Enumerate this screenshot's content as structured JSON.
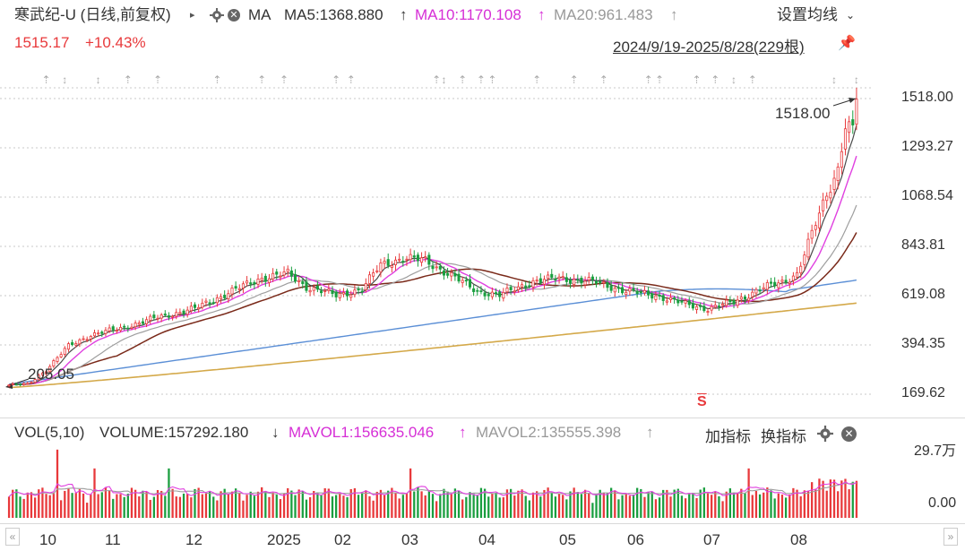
{
  "header": {
    "title": "寒武纪-U (日线,前复权)",
    "ma_label": "MA",
    "ma5": "MA5:1368.880",
    "ma10": "MA10:1170.108",
    "ma20": "MA20:961.483",
    "settings": "设置均线",
    "price": "1515.17",
    "change": "+10.43%",
    "range": "2024/9/19-2025/8/28(229根)"
  },
  "volume_header": {
    "vol": "VOL(5,10)",
    "volume": "VOLUME:157292.180",
    "mavol1": "MAVOL1:156635.046",
    "mavol2": "MAVOL2:135555.398",
    "add_indicator": "加指标",
    "swap_indicator": "换指标"
  },
  "colors": {
    "up": "#e8393b",
    "down": "#1a9e3f",
    "ma5": "#4a4a4a",
    "ma10": "#e040e0",
    "ma20": "#9e9e9e",
    "ma60": "#7a2a1a",
    "ma120": "#5b8fd6",
    "ma250": "#d4a94a",
    "mavol1": "#e040e0",
    "mavol2": "#9e9e9e"
  },
  "chart_data": {
    "type": "candlestick",
    "price_axis": {
      "ticks": [
        "1518.00",
        "1293.27",
        "1068.54",
        "843.81",
        "619.08",
        "394.35",
        "169.62"
      ],
      "ylim": [
        169.62,
        1518.0
      ]
    },
    "volume_axis": {
      "ticks": [
        "29.7万",
        "0.00"
      ],
      "ylim": [
        0,
        297000
      ]
    },
    "x_labels": [
      "10",
      "11",
      "12",
      "2025",
      "02",
      "03",
      "04",
      "05",
      "06",
      "07",
      "08"
    ],
    "annotations": {
      "high": "1518.00",
      "low": "205.05",
      "marker": "S"
    },
    "bars_count": 229,
    "key_points": [
      {
        "i": 0,
        "close": 212
      },
      {
        "i": 5,
        "close": 215
      },
      {
        "i": 10,
        "close": 280
      },
      {
        "i": 16,
        "close": 390
      },
      {
        "i": 22,
        "close": 440
      },
      {
        "i": 30,
        "close": 470
      },
      {
        "i": 40,
        "close": 520
      },
      {
        "i": 50,
        "close": 560
      },
      {
        "i": 60,
        "close": 640
      },
      {
        "i": 68,
        "close": 700
      },
      {
        "i": 75,
        "close": 720
      },
      {
        "i": 80,
        "close": 660
      },
      {
        "i": 88,
        "close": 620
      },
      {
        "i": 95,
        "close": 650
      },
      {
        "i": 100,
        "close": 760
      },
      {
        "i": 106,
        "close": 790
      },
      {
        "i": 112,
        "close": 780
      },
      {
        "i": 118,
        "close": 720
      },
      {
        "i": 126,
        "close": 640
      },
      {
        "i": 132,
        "close": 620
      },
      {
        "i": 140,
        "close": 680
      },
      {
        "i": 148,
        "close": 700
      },
      {
        "i": 158,
        "close": 680
      },
      {
        "i": 166,
        "close": 640
      },
      {
        "i": 174,
        "close": 620
      },
      {
        "i": 182,
        "close": 580
      },
      {
        "i": 188,
        "close": 560
      },
      {
        "i": 195,
        "close": 590
      },
      {
        "i": 202,
        "close": 650
      },
      {
        "i": 208,
        "close": 680
      },
      {
        "i": 212,
        "close": 720
      },
      {
        "i": 216,
        "close": 900
      },
      {
        "i": 220,
        "close": 1080
      },
      {
        "i": 223,
        "close": 1200
      },
      {
        "i": 225,
        "close": 1400
      },
      {
        "i": 227,
        "close": 1372
      },
      {
        "i": 228,
        "close": 1515
      }
    ]
  }
}
